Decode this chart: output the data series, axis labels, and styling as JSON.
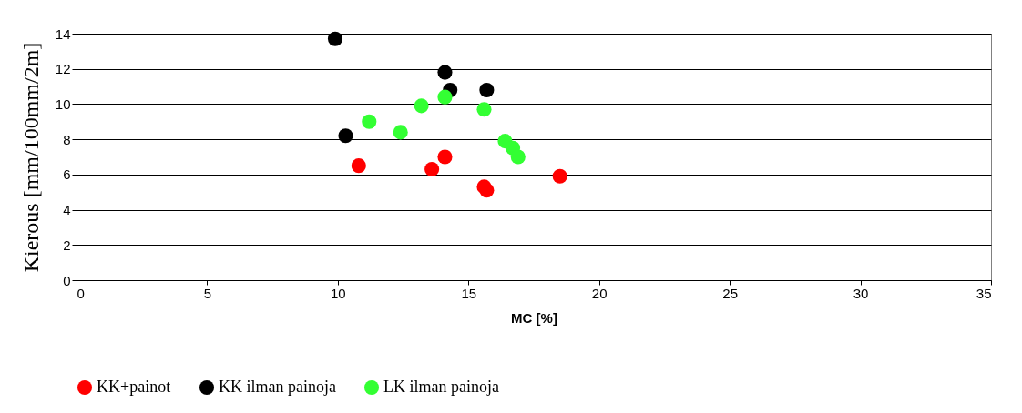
{
  "chart_data": {
    "type": "scatter",
    "xlabel": "MC [%]",
    "ylabel": "Kierous [mm/100mm/2m]",
    "xlim": [
      0,
      35
    ],
    "xticks": [
      0,
      5,
      10,
      15,
      20,
      25,
      30,
      35
    ],
    "ylim": [
      0,
      14
    ],
    "yticks": [
      0,
      2,
      4,
      6,
      8,
      10,
      12,
      14
    ],
    "grid": "y",
    "legend": "bottom",
    "marker": "circle",
    "series": [
      {
        "name": "KK+painot",
        "color": "#ff0000",
        "x": [
          10.8,
          13.6,
          14.1,
          15.6,
          15.7,
          18.5
        ],
        "values": [
          6.5,
          6.3,
          7.0,
          5.3,
          5.1,
          5.9
        ]
      },
      {
        "name": "KK ilman painoja",
        "color": "#000000",
        "x": [
          9.9,
          14.1,
          14.3,
          15.7,
          10.3
        ],
        "values": [
          13.7,
          11.8,
          10.8,
          10.8,
          8.2
        ]
      },
      {
        "name": "LK ilman painoja",
        "color": "#33ff33",
        "x": [
          11.2,
          12.4,
          13.2,
          14.1,
          15.6,
          16.4,
          16.7,
          16.9
        ],
        "values": [
          9.0,
          8.4,
          9.9,
          10.4,
          9.7,
          7.9,
          7.5,
          7.0
        ]
      }
    ]
  }
}
